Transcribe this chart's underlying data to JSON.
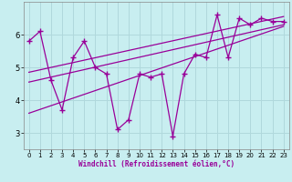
{
  "xlabel": "Windchill (Refroidissement éolien,°C)",
  "ylabel": "",
  "bg_color": "#c8eef0",
  "grid_color": "#b0d8dc",
  "line_color": "#990099",
  "xlim": [
    -0.5,
    23.5
  ],
  "ylim": [
    2.5,
    7.0
  ],
  "yticks": [
    3,
    4,
    5,
    6
  ],
  "xticks": [
    0,
    1,
    2,
    3,
    4,
    5,
    6,
    7,
    8,
    9,
    10,
    11,
    12,
    13,
    14,
    15,
    16,
    17,
    18,
    19,
    20,
    21,
    22,
    23
  ],
  "data_x": [
    0,
    1,
    2,
    3,
    4,
    5,
    6,
    7,
    8,
    9,
    10,
    11,
    12,
    13,
    14,
    15,
    16,
    17,
    18,
    19,
    20,
    21,
    22,
    23
  ],
  "data_y": [
    5.8,
    6.1,
    4.6,
    3.7,
    5.3,
    5.8,
    5.0,
    4.8,
    3.1,
    3.4,
    4.8,
    4.7,
    4.8,
    2.9,
    4.8,
    5.4,
    5.3,
    6.6,
    5.3,
    6.5,
    6.3,
    6.5,
    6.4,
    6.4
  ],
  "trend1_x": [
    0,
    23
  ],
  "trend1_y": [
    4.55,
    6.3
  ],
  "trend2_x": [
    0,
    23
  ],
  "trend2_y": [
    4.85,
    6.55
  ],
  "trend3_x": [
    0,
    23
  ],
  "trend3_y": [
    3.6,
    6.25
  ]
}
